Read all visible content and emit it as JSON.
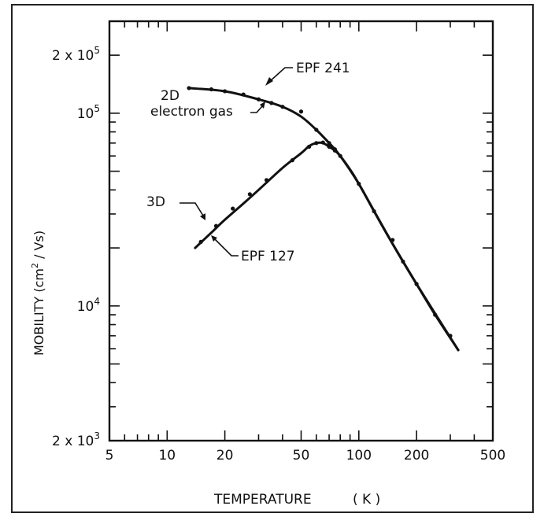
{
  "chart_data": {
    "type": "line",
    "xlabel": "TEMPERATURE",
    "xlabel_unit": "( K )",
    "ylabel": "MOBILITY",
    "ylabel_unit": "(cm",
    "ylabel_unit_sup": "2",
    "ylabel_unit_tail": " / Vs)",
    "xscale": "log",
    "yscale": "log",
    "xlim": [
      5,
      500
    ],
    "ylim": [
      2000,
      300000
    ],
    "xticks": [
      {
        "value": 5,
        "label": "5"
      },
      {
        "value": 10,
        "label": "10"
      },
      {
        "value": 20,
        "label": "20"
      },
      {
        "value": 50,
        "label": "50"
      },
      {
        "value": 100,
        "label": "100"
      },
      {
        "value": 200,
        "label": "200"
      },
      {
        "value": 500,
        "label": "500"
      }
    ],
    "yticks": [
      {
        "value": 2000,
        "base": "2 x 10",
        "exp": "3"
      },
      {
        "value": 10000,
        "base": "10",
        "exp": "4"
      },
      {
        "value": 100000,
        "base": "10",
        "exp": "5"
      },
      {
        "value": 200000,
        "base": "2 x 10",
        "exp": "5"
      }
    ],
    "grid": false,
    "legend": "none",
    "annotations": [
      {
        "text": "EPF 241"
      },
      {
        "text": "2D"
      },
      {
        "text": "electron gas"
      },
      {
        "text": "3D"
      },
      {
        "text": "EPF 127"
      }
    ],
    "series": [
      {
        "name": "EPF 241",
        "x": [
          13,
          20,
          30,
          40,
          50,
          60,
          70,
          80,
          100,
          120,
          150,
          200,
          250,
          330
        ],
        "y": [
          135000,
          130000,
          118000,
          108000,
          96000,
          82000,
          70000,
          60000,
          43000,
          31000,
          21000,
          13000,
          9000,
          5900
        ]
      },
      {
        "name": "EPF 127",
        "x": [
          14,
          17,
          20,
          25,
          30,
          40,
          50,
          55,
          60,
          65,
          70,
          75,
          80,
          90,
          100,
          150,
          200,
          330
        ],
        "y": [
          20000,
          24000,
          28000,
          34000,
          40000,
          52000,
          62000,
          67500,
          70000,
          70000,
          67000,
          64000,
          60000,
          51000,
          43000,
          21000,
          13000,
          5900
        ]
      }
    ],
    "markers": [
      {
        "series": "EPF 241",
        "x": [
          13,
          17,
          20,
          25,
          30,
          35,
          40,
          50,
          60,
          70,
          75,
          80,
          100,
          120,
          150,
          170,
          200,
          250,
          300
        ],
        "y": [
          135000,
          133000,
          130000,
          125000,
          118000,
          113000,
          108000,
          102000,
          82000,
          70000,
          65000,
          60000,
          43000,
          31000,
          22000,
          17000,
          13000,
          9000,
          7000
        ]
      },
      {
        "series": "EPF 127",
        "x": [
          15,
          18,
          22,
          27,
          33,
          45,
          55,
          60,
          65,
          70,
          75
        ],
        "y": [
          21500,
          26000,
          32000,
          38000,
          45000,
          57000,
          67000,
          70000,
          70500,
          67000,
          64000
        ]
      }
    ]
  }
}
